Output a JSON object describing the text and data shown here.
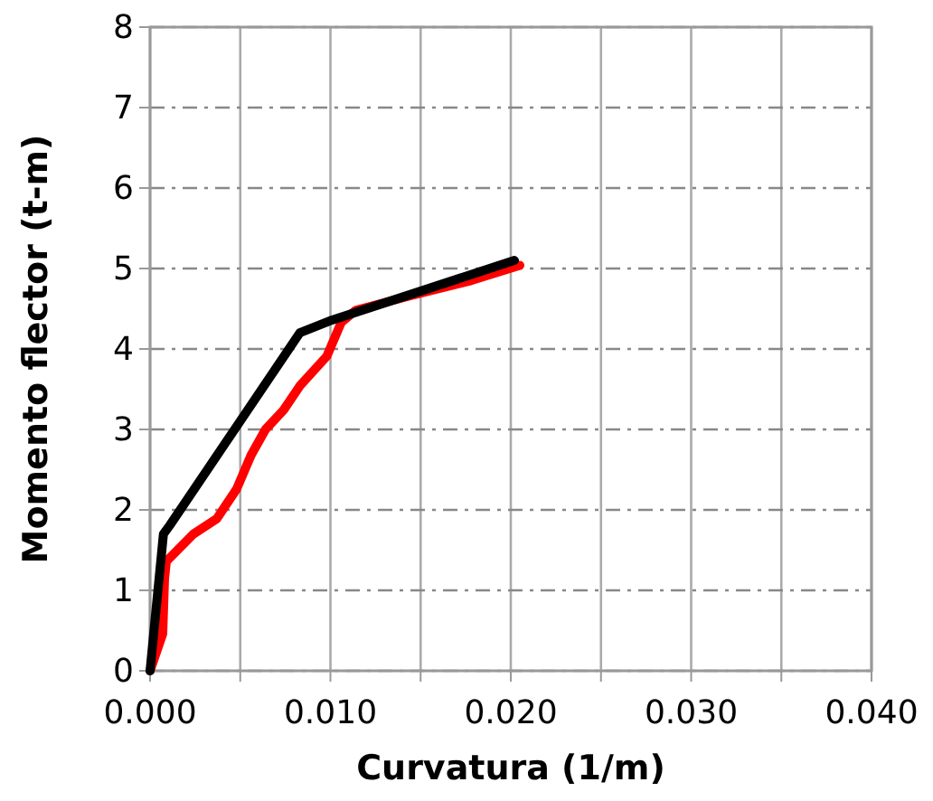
{
  "chart_data": {
    "type": "line",
    "xlabel": "Curvatura (1/m)",
    "ylabel": "Momento flector (t-m)",
    "xlim": [
      0,
      0.04
    ],
    "ylim": [
      0,
      8
    ],
    "xticks": [
      {
        "value": 0,
        "label": "0.000"
      },
      {
        "value": 0.005,
        "label": null
      },
      {
        "value": 0.01,
        "label": "0.010"
      },
      {
        "value": 0.015,
        "label": null
      },
      {
        "value": 0.02,
        "label": "0.020"
      },
      {
        "value": 0.025,
        "label": null
      },
      {
        "value": 0.03,
        "label": "0.030"
      },
      {
        "value": 0.035,
        "label": null
      },
      {
        "value": 0.04,
        "label": "0.040"
      }
    ],
    "yticks": [
      0,
      1,
      2,
      3,
      4,
      5,
      6,
      7,
      8
    ],
    "grid": true,
    "marker": "none",
    "line_style": "solid",
    "series": [
      {
        "color": "#ff0000",
        "x": [
          0,
          0.0007,
          0.0008,
          0.0009,
          0.0024,
          0.0037,
          0.0048,
          0.0056,
          0.0064,
          0.0074,
          0.0083,
          0.0098,
          0.0106,
          0.0114,
          0.0144,
          0.0178,
          0.0205
        ],
        "values": [
          0,
          0.46,
          1.14,
          1.36,
          1.7,
          1.89,
          2.26,
          2.68,
          3.0,
          3.24,
          3.54,
          3.91,
          4.33,
          4.48,
          4.66,
          4.85,
          5.04
        ]
      },
      {
        "color": "#000000",
        "x": [
          0,
          0.00074,
          0.0011,
          0.0083,
          0.0101,
          0.0202
        ],
        "values": [
          0,
          1.7,
          1.81,
          4.2,
          4.36,
          5.1
        ]
      }
    ]
  }
}
